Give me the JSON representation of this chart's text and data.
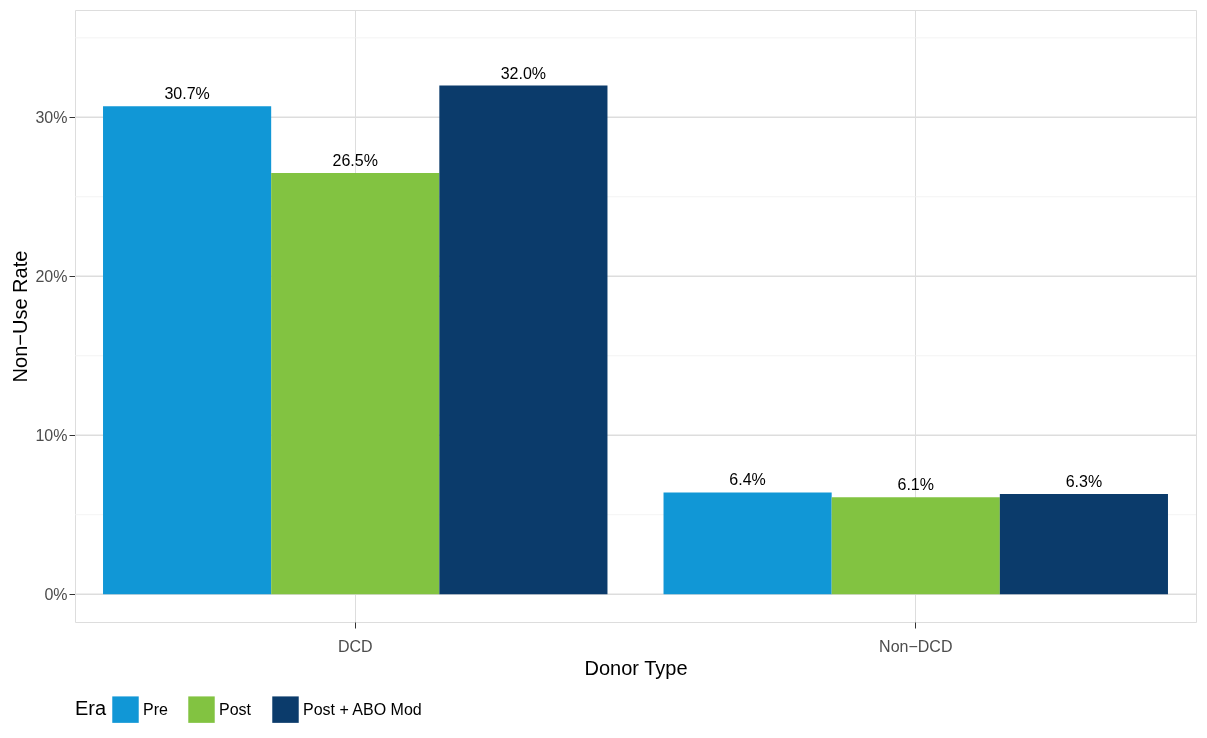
{
  "chart_data": {
    "type": "bar",
    "xlabel": "Donor Type",
    "ylabel": "Non−Use Rate",
    "legend_title": "Era",
    "categories": [
      "DCD",
      "Non−DCD"
    ],
    "series": [
      {
        "name": "Pre",
        "color": "#1197d6",
        "values": [
          30.7,
          6.4
        ],
        "value_labels": [
          "30.7%",
          "6.4%"
        ]
      },
      {
        "name": "Post",
        "color": "#82c341",
        "values": [
          26.5,
          6.1
        ],
        "value_labels": [
          "26.5%",
          "6.1%"
        ]
      },
      {
        "name": "Post + ABO Mod",
        "color": "#0b3b6b",
        "values": [
          32.0,
          6.3
        ],
        "value_labels": [
          "32.0%",
          "6.3%"
        ]
      }
    ],
    "ylim": [
      -1.75,
      36.75
    ],
    "yticks": [
      {
        "value": 0,
        "label": "0%"
      },
      {
        "value": 5,
        "label": null
      },
      {
        "value": 10,
        "label": "10%"
      },
      {
        "value": 15,
        "label": null
      },
      {
        "value": 20,
        "label": "20%"
      },
      {
        "value": 25,
        "label": null
      },
      {
        "value": 30,
        "label": "30%"
      },
      {
        "value": 35,
        "label": null
      }
    ],
    "grid": true,
    "legend": "bottom"
  }
}
